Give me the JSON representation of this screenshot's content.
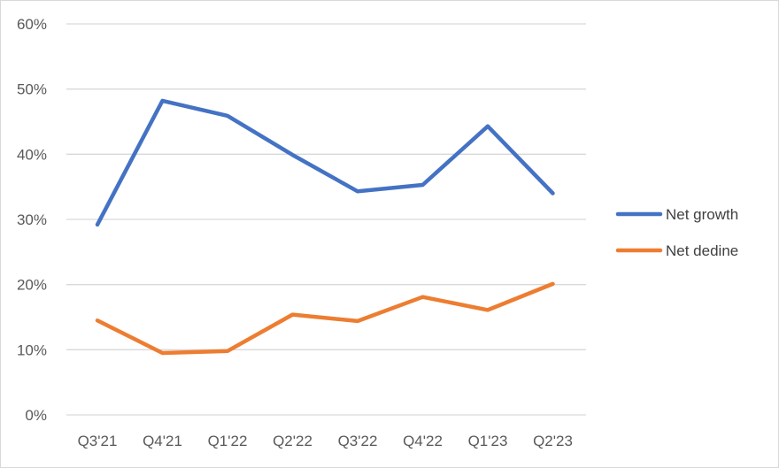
{
  "chart_data": {
    "type": "line",
    "categories": [
      "Q3'21",
      "Q4'21",
      "Q1'22",
      "Q2'22",
      "Q3'22",
      "Q4'22",
      "Q1'23",
      "Q2'23"
    ],
    "series": [
      {
        "name": "Net growth",
        "color": "#4472c4",
        "values": [
          29.2,
          48.2,
          45.9,
          39.9,
          34.3,
          35.3,
          44.3,
          34.0
        ]
      },
      {
        "name": "Net dedine",
        "color": "#ed7d31",
        "values": [
          14.5,
          9.5,
          9.8,
          15.4,
          14.4,
          18.1,
          16.1,
          20.1
        ]
      }
    ],
    "ylim": [
      0,
      60
    ],
    "yticks": [
      "0%",
      "10%",
      "20%",
      "30%",
      "40%",
      "50%",
      "60%"
    ],
    "grid": true,
    "legend_position": "right",
    "title": "",
    "xlabel": "",
    "ylabel": ""
  }
}
